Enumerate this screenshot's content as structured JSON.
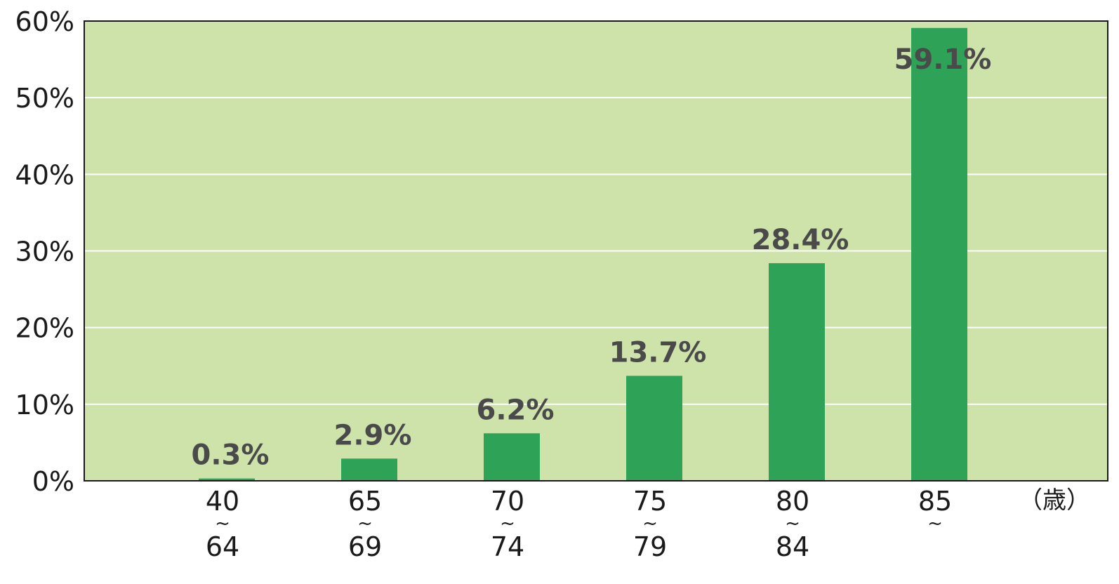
{
  "chart_data": {
    "type": "bar",
    "categories": [
      {
        "from": "40",
        "to": "64"
      },
      {
        "from": "65",
        "to": "69"
      },
      {
        "from": "70",
        "to": "74"
      },
      {
        "from": "75",
        "to": "79"
      },
      {
        "from": "80",
        "to": "84"
      },
      {
        "from": "85",
        "to": ""
      }
    ],
    "range_mark": "~",
    "values": [
      0.3,
      2.9,
      6.2,
      13.7,
      28.4,
      59.1
    ],
    "value_labels": [
      "0.3%",
      "2.9%",
      "6.2%",
      "13.7%",
      "28.4%",
      "59.1%"
    ],
    "yticks": [
      0,
      10,
      20,
      30,
      40,
      50,
      60
    ],
    "ytick_labels": [
      "0%",
      "10%",
      "20%",
      "30%",
      "40%",
      "50%",
      "60%"
    ],
    "ylim": [
      0,
      60
    ],
    "x_unit": "（歳）",
    "title": "",
    "xlabel": "",
    "ylabel": "",
    "grid": true,
    "colors": {
      "plot_background": "#cee3aa",
      "bar": "#2ea256",
      "grid": "#ffffff",
      "axis": "#1a1a1a"
    }
  }
}
